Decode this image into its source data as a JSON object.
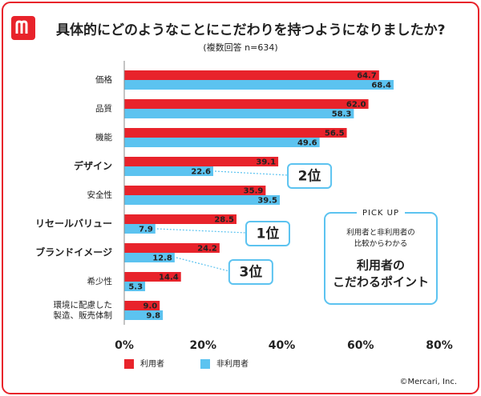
{
  "chart_data": {
    "type": "hbar",
    "title": "具体的にどのようなことにこだわりを持つようになりましたか?",
    "subtitle": "(複数回答 n=634)",
    "categories": [
      "価格",
      "品質",
      "機能",
      "デザイン",
      "安全性",
      "リセールバリュー",
      "ブランドイメージ",
      "希少性",
      "環境に配慮した\n製造、販売体制"
    ],
    "highlighted": [
      3,
      5,
      6
    ],
    "series": [
      {
        "name": "利用者",
        "color": "#e8232b",
        "values": [
          64.7,
          62.0,
          56.5,
          39.1,
          35.9,
          28.5,
          24.2,
          14.4,
          9.0
        ],
        "value_labels": [
          "64.7",
          "62.0",
          "56.5",
          "39.1",
          "35.9",
          "28.5",
          "24.2",
          "14.4",
          "9.0"
        ]
      },
      {
        "name": "非利用者",
        "color": "#5cc3f0",
        "values": [
          68.4,
          58.3,
          49.6,
          22.6,
          39.5,
          7.9,
          12.8,
          5.3,
          9.8
        ],
        "value_labels": [
          "68.4",
          "58.3",
          "49.6",
          "22.6",
          "39.5",
          "7.9",
          "12.8",
          "5.3",
          "9.8"
        ]
      }
    ],
    "xlim": [
      0,
      80
    ],
    "xticks": [
      {
        "value": 0,
        "label": "0%"
      },
      {
        "value": 20,
        "label": "20%"
      },
      {
        "value": 40,
        "label": "40%"
      },
      {
        "value": 60,
        "label": "60%"
      },
      {
        "value": 80,
        "label": "80%"
      }
    ],
    "grid": false,
    "annotations": [
      {
        "category": 3,
        "text": "2位"
      },
      {
        "category": 5,
        "text": "1位"
      },
      {
        "category": 6,
        "text": "3位"
      }
    ],
    "pickup": {
      "label": "PICK UP",
      "lines": [
        "利用者と非利用者の",
        "比較からわかる"
      ],
      "headline": [
        "利用者の",
        "こだわるポイント"
      ]
    },
    "copyright": "©Mercari, Inc."
  }
}
